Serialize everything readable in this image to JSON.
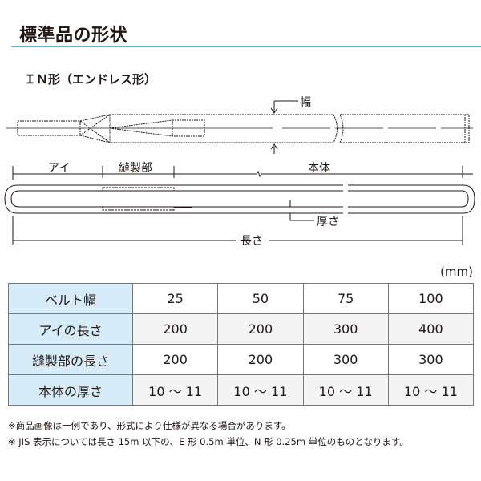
{
  "title": "標準品の形状",
  "subtitle": "ＩＮ形（エンドレス形）",
  "diagram": {
    "width_label": "幅",
    "eye_label": "アイ",
    "sewn_label": "縫製部",
    "body_label": "本体",
    "thickness_label": "厚さ",
    "length_label": "長さ"
  },
  "unit": "(mm)",
  "table": {
    "rows": [
      {
        "label": "ベルト幅",
        "values": [
          "25",
          "50",
          "75",
          "100"
        ]
      },
      {
        "label": "アイの長さ",
        "values": [
          "200",
          "200",
          "300",
          "400"
        ]
      },
      {
        "label": "縫製部の長さ",
        "values": [
          "200",
          "200",
          "300",
          "300"
        ]
      },
      {
        "label": "本体の厚さ",
        "values": [
          "10 ～ 11",
          "10 ～ 11",
          "10 ～ 11",
          "10 ～ 11"
        ]
      }
    ]
  },
  "notes": [
    "※商品画像は一例であり、形式により仕様が異なる場合があります。",
    "※ JIS 表示については長さ 15m 以下の、E 形 0.5m 単位、N 形 0.25m 単位のものとなります。"
  ],
  "colors": {
    "accent_rule": "#6aaccc",
    "header_cell": "#d6ecf8"
  }
}
